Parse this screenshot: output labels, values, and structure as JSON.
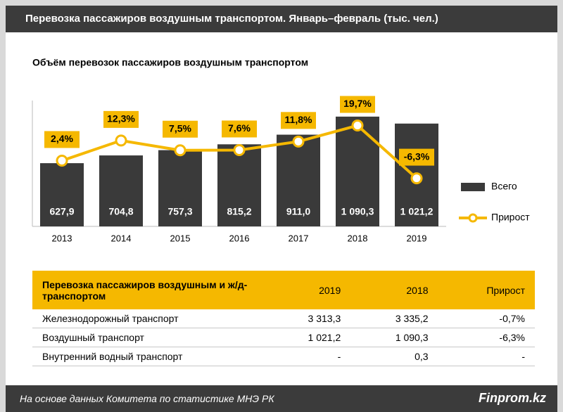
{
  "header": {
    "title": "Перевозка пассажиров воздушным транспортом. Январь–февраль  (тыс. чел.)"
  },
  "chart_data": {
    "type": "bar-line",
    "title": "Объём перевозок пассажиров воздушным транспортом",
    "categories": [
      "2013",
      "2014",
      "2015",
      "2016",
      "2017",
      "2018",
      "2019"
    ],
    "series": [
      {
        "name": "Всего",
        "type": "bar",
        "color": "#3a3a3a",
        "values": [
          627.9,
          704.8,
          757.3,
          815.2,
          911.0,
          1090.3,
          1021.2
        ],
        "value_labels": [
          "627,9",
          "704,8",
          "757,3",
          "815,2",
          "911,0",
          "1 090,3",
          "1 021,2"
        ]
      },
      {
        "name": "Прирост",
        "type": "line",
        "axis": "y2",
        "color": "#f5b800",
        "values": [
          2.4,
          12.3,
          7.5,
          7.6,
          11.8,
          19.7,
          -6.3
        ],
        "value_labels": [
          "2,4%",
          "12,3%",
          "7,5%",
          "7,6%",
          "11,8%",
          "19,7%",
          "-6,3%"
        ]
      }
    ],
    "ylim": [
      0,
      1250
    ],
    "y2lim": [
      -30,
      32
    ],
    "legend": "right"
  },
  "table": {
    "header": [
      "Перевозка пассажиров воздушным и ж/д-транспортом",
      "2019",
      "2018",
      "Прирост"
    ],
    "rows": [
      [
        "Железнодорожный транспорт",
        "3 313,3",
        "3 335,2",
        "-0,7%"
      ],
      [
        "Воздушный транспорт",
        "1 021,2",
        "1 090,3",
        "-6,3%"
      ],
      [
        "Внутренний водный транспорт",
        "-",
        "0,3",
        "-"
      ]
    ]
  },
  "footer": {
    "source": "На основе данных Комитета по статистике МНЭ РК",
    "brand": "Finprom.kz"
  }
}
